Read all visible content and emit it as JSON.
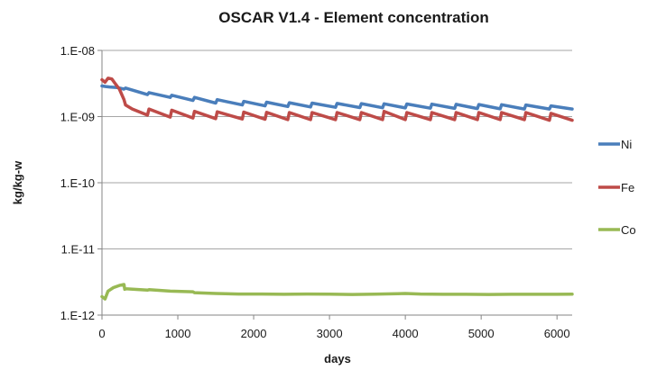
{
  "chart_data": {
    "type": "line",
    "title": "OSCAR V1.4 - Element concentration",
    "xlabel": "days",
    "ylabel": "kg/kg-w",
    "xlim": [
      0,
      6200
    ],
    "ylim": [
      1e-12,
      1e-08
    ],
    "yscale": "log",
    "grid": true,
    "legend": "right",
    "x_ticks": [
      0,
      1000,
      2000,
      3000,
      4000,
      5000,
      6000
    ],
    "x_tick_labels": [
      "0",
      "1000",
      "2000",
      "3000",
      "4000",
      "5000",
      "6000"
    ],
    "y_ticks": [
      1e-12,
      1e-11,
      1e-10,
      1e-09,
      1e-08
    ],
    "y_tick_labels": [
      "1.E-12",
      "1.E-11",
      "1.E-10",
      "1.E-09",
      "1.E-08"
    ],
    "series": [
      {
        "name": "Ni",
        "color": "#4a7ebb",
        "x": [
          0,
          50,
          100,
          200,
          290,
          310,
          600,
          620,
          900,
          920,
          1200,
          1220,
          1500,
          1520,
          1850,
          1870,
          2150,
          2170,
          2450,
          2470,
          2750,
          2770,
          3080,
          3100,
          3400,
          3420,
          3700,
          3720,
          4000,
          4020,
          4330,
          4350,
          4650,
          4670,
          4950,
          4970,
          5250,
          5270,
          5570,
          5590,
          5900,
          5920,
          6200
        ],
        "y": [
          2.9e-09,
          2.85e-09,
          2.8e-09,
          2.75e-09,
          2.6e-09,
          2.7e-09,
          2.15e-09,
          2.3e-09,
          1.95e-09,
          2.1e-09,
          1.75e-09,
          1.95e-09,
          1.6e-09,
          1.8e-09,
          1.5e-09,
          1.7e-09,
          1.45e-09,
          1.65e-09,
          1.42e-09,
          1.62e-09,
          1.4e-09,
          1.6e-09,
          1.38e-09,
          1.58e-09,
          1.37e-09,
          1.57e-09,
          1.36e-09,
          1.56e-09,
          1.35e-09,
          1.55e-09,
          1.34e-09,
          1.54e-09,
          1.33e-09,
          1.53e-09,
          1.32e-09,
          1.52e-09,
          1.31e-09,
          1.51e-09,
          1.3e-09,
          1.5e-09,
          1.3e-09,
          1.45e-09,
          1.3e-09
        ]
      },
      {
        "name": "Fe",
        "color": "#be4b48",
        "x": [
          0,
          40,
          80,
          130,
          170,
          230,
          290,
          310,
          400,
          600,
          620,
          900,
          920,
          1200,
          1220,
          1500,
          1520,
          1850,
          1870,
          2150,
          2170,
          2450,
          2470,
          2750,
          2770,
          3080,
          3100,
          3400,
          3420,
          3700,
          3720,
          4000,
          4020,
          4330,
          4350,
          4650,
          4670,
          4950,
          4970,
          5250,
          5270,
          5570,
          5590,
          5900,
          5920,
          6200
        ],
        "y": [
          3.6e-09,
          3.3e-09,
          3.8e-09,
          3.7e-09,
          3.2e-09,
          2.6e-09,
          1.8e-09,
          1.5e-09,
          1.3e-09,
          1.05e-09,
          1.3e-09,
          9.8e-10,
          1.25e-09,
          9.5e-10,
          1.2e-09,
          9.3e-10,
          1.18e-09,
          9.2e-10,
          1.17e-09,
          9.1e-10,
          1.16e-09,
          9e-10,
          1.15e-09,
          9e-10,
          1.15e-09,
          9e-10,
          1.15e-09,
          9e-10,
          1.15e-09,
          9e-10,
          1.2e-09,
          9e-10,
          1.15e-09,
          9e-10,
          1.15e-09,
          9e-10,
          1.15e-09,
          9e-10,
          1.15e-09,
          9e-10,
          1.15e-09,
          9e-10,
          1.15e-09,
          8.8e-10,
          1.12e-09,
          8.8e-10
        ]
      },
      {
        "name": "Co",
        "color": "#98b954",
        "x": [
          0,
          40,
          80,
          150,
          230,
          290,
          300,
          310,
          600,
          620,
          900,
          1200,
          1220,
          1500,
          1800,
          2100,
          2400,
          2700,
          3000,
          3300,
          3600,
          3900,
          4000,
          4200,
          4500,
          4800,
          5100,
          5400,
          5700,
          6000,
          6200
        ],
        "y": [
          1.9e-12,
          1.75e-12,
          2.3e-12,
          2.6e-12,
          2.8e-12,
          2.9e-12,
          2.45e-12,
          2.5e-12,
          2.38e-12,
          2.42e-12,
          2.3e-12,
          2.25e-12,
          2.18e-12,
          2.12e-12,
          2.08e-12,
          2.08e-12,
          2.06e-12,
          2.08e-12,
          2.07e-12,
          2.05e-12,
          2.07e-12,
          2.1e-12,
          2.12e-12,
          2.08e-12,
          2.06e-12,
          2.06e-12,
          2.05e-12,
          2.06e-12,
          2.06e-12,
          2.06e-12,
          2.07e-12
        ]
      }
    ]
  }
}
